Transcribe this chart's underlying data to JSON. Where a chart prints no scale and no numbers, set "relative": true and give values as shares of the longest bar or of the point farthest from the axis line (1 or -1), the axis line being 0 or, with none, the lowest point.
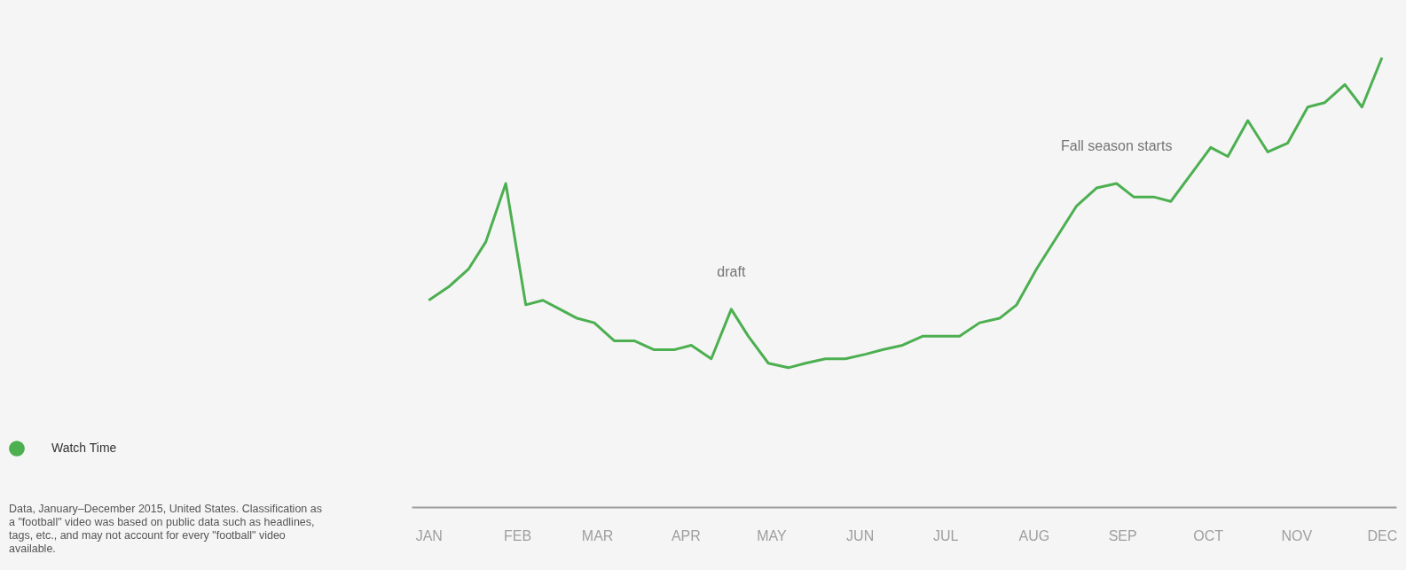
{
  "chart_data": {
    "type": "line",
    "relative": true,
    "x": [
      "2015-01-01",
      "2015-01-08",
      "2015-01-15",
      "2015-01-21",
      "2015-01-28",
      "2015-02-04",
      "2015-02-10",
      "2015-02-16",
      "2015-02-22",
      "2015-02-28",
      "2015-03-07",
      "2015-03-14",
      "2015-03-21",
      "2015-03-28",
      "2015-04-03",
      "2015-04-10",
      "2015-04-17",
      "2015-04-23",
      "2015-04-30",
      "2015-05-07",
      "2015-05-13",
      "2015-05-20",
      "2015-05-27",
      "2015-06-03",
      "2015-06-09",
      "2015-06-16",
      "2015-06-23",
      "2015-06-29",
      "2015-07-06",
      "2015-07-13",
      "2015-07-20",
      "2015-07-26",
      "2015-08-02",
      "2015-08-09",
      "2015-08-16",
      "2015-08-23",
      "2015-08-30",
      "2015-09-05",
      "2015-09-12",
      "2015-09-18",
      "2015-09-25",
      "2015-10-02",
      "2015-10-08",
      "2015-10-15",
      "2015-10-22",
      "2015-10-29",
      "2015-11-05",
      "2015-11-11",
      "2015-11-18",
      "2015-11-24",
      "2015-12-01"
    ],
    "series": [
      {
        "name": "Watch Time",
        "color": "#4caf50",
        "values": [
          0.46,
          0.49,
          0.53,
          0.59,
          0.72,
          0.45,
          0.46,
          0.44,
          0.42,
          0.41,
          0.37,
          0.37,
          0.35,
          0.35,
          0.36,
          0.33,
          0.44,
          0.38,
          0.32,
          0.31,
          0.32,
          0.33,
          0.33,
          0.34,
          0.35,
          0.36,
          0.38,
          0.38,
          0.38,
          0.41,
          0.42,
          0.45,
          0.53,
          0.6,
          0.67,
          0.71,
          0.72,
          0.69,
          0.69,
          0.68,
          0.74,
          0.8,
          0.78,
          0.86,
          0.79,
          0.81,
          0.89,
          0.9,
          0.94,
          0.89,
          1
        ]
      }
    ],
    "xlim": [
      "2014-12-26",
      "2015-12-06"
    ],
    "xticks": [
      {
        "value": "2015-01-01",
        "label": "JAN"
      },
      {
        "value": "2015-02-01",
        "label": "FEB"
      },
      {
        "value": "2015-03-01",
        "label": "MAR"
      },
      {
        "value": "2015-04-01",
        "label": "APR"
      },
      {
        "value": "2015-05-01",
        "label": "MAY"
      },
      {
        "value": "2015-06-01",
        "label": "JUN"
      },
      {
        "value": "2015-07-01",
        "label": "JUL"
      },
      {
        "value": "2015-08-01",
        "label": "AUG"
      },
      {
        "value": "2015-09-01",
        "label": "SEP"
      },
      {
        "value": "2015-10-01",
        "label": "OCT"
      },
      {
        "value": "2015-11-01",
        "label": "NOV"
      },
      {
        "value": "2015-12-01",
        "label": "DEC"
      }
    ],
    "legend": "bottom left",
    "annotations": [
      {
        "text": "draft",
        "x": "2015-04-17",
        "y": 0.44
      },
      {
        "text": "Fall season starts",
        "x": "2015-08-30",
        "y": 0.72
      },
      "Data, January–December 2015, United States. Classification as a \"football\" video was based on public data such as headlines, tags, etc., and may not account for every \"football\" video available."
    ]
  }
}
